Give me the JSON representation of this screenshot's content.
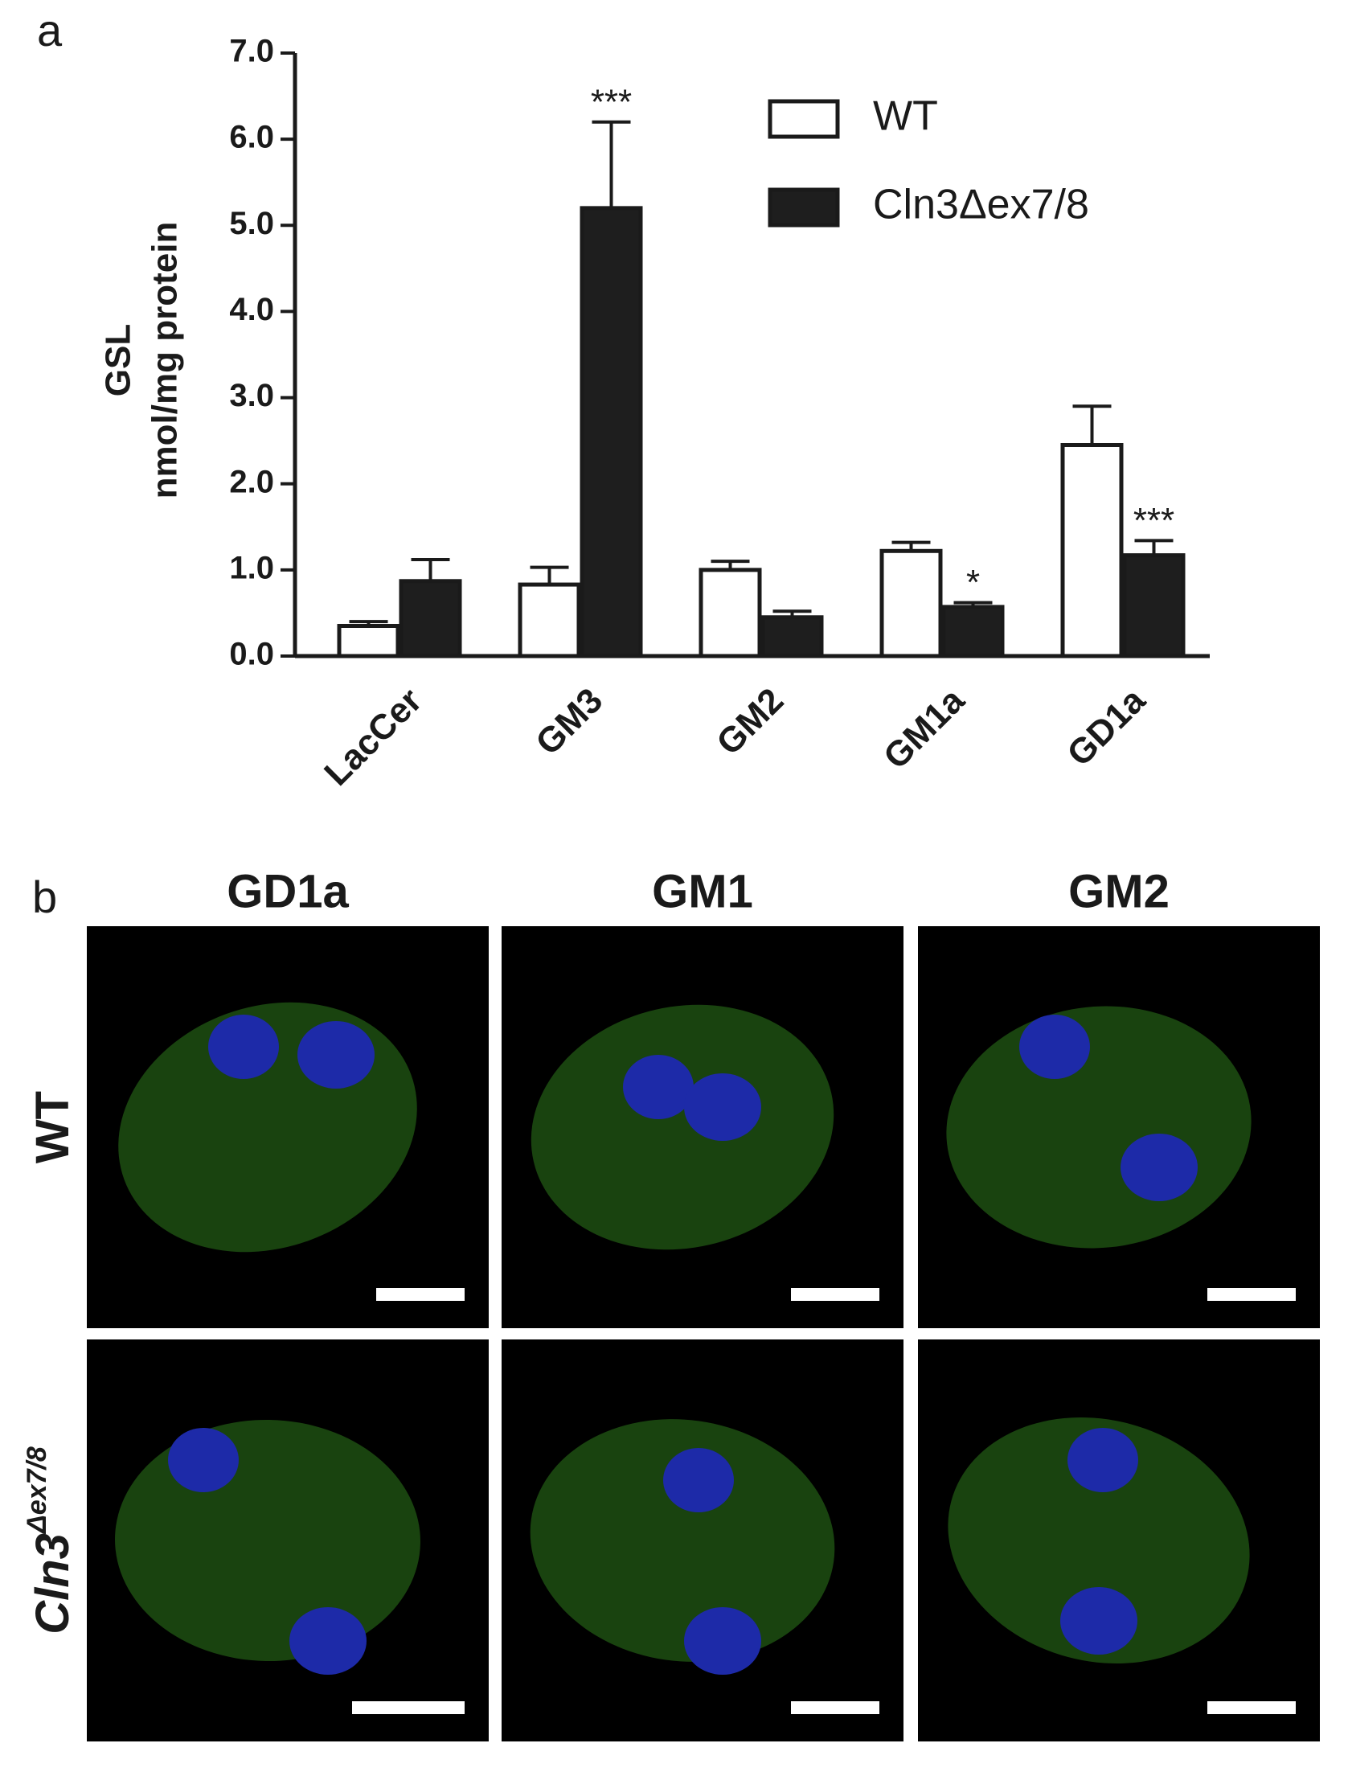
{
  "panel_labels": [
    "a",
    "b"
  ],
  "chart_data": {
    "type": "bar",
    "y_label": [
      "GSL",
      "nmol/mg protein"
    ],
    "categories": [
      "LacCer",
      "GM3",
      "GM2",
      "GM1a",
      "GD1a"
    ],
    "series": [
      {
        "name": "WT",
        "color": "#ffffff",
        "values": [
          0.35,
          0.83,
          1.0,
          1.22,
          2.45
        ],
        "errors": [
          0.05,
          0.2,
          0.1,
          0.1,
          0.45
        ]
      },
      {
        "name": "Cln3Δex7/8",
        "color": "#1e1e1e",
        "values": [
          0.87,
          5.2,
          0.45,
          0.57,
          1.17
        ],
        "errors": [
          0.25,
          1.0,
          0.07,
          0.05,
          0.17
        ],
        "annotations": [
          null,
          "***",
          null,
          "*",
          "***"
        ]
      }
    ],
    "ylim": [
      0,
      7
    ],
    "yticks": [
      {
        "value": 0,
        "label": "0.0"
      },
      {
        "value": 1,
        "label": "1.0"
      },
      {
        "value": 2,
        "label": "2.0"
      },
      {
        "value": 3,
        "label": "3.0"
      },
      {
        "value": 4,
        "label": "4.0"
      },
      {
        "value": 5,
        "label": "5.0"
      },
      {
        "value": 6,
        "label": "6.0"
      },
      {
        "value": 7,
        "label": "7.0"
      }
    ],
    "legend": "upper right"
  },
  "micrographs": {
    "columns": [
      "GD1a",
      "GM1",
      "GM2"
    ],
    "rows": [
      {
        "name": "WT"
      },
      {
        "name": "Cln3",
        "superscript": "Δex7/8"
      }
    ]
  }
}
